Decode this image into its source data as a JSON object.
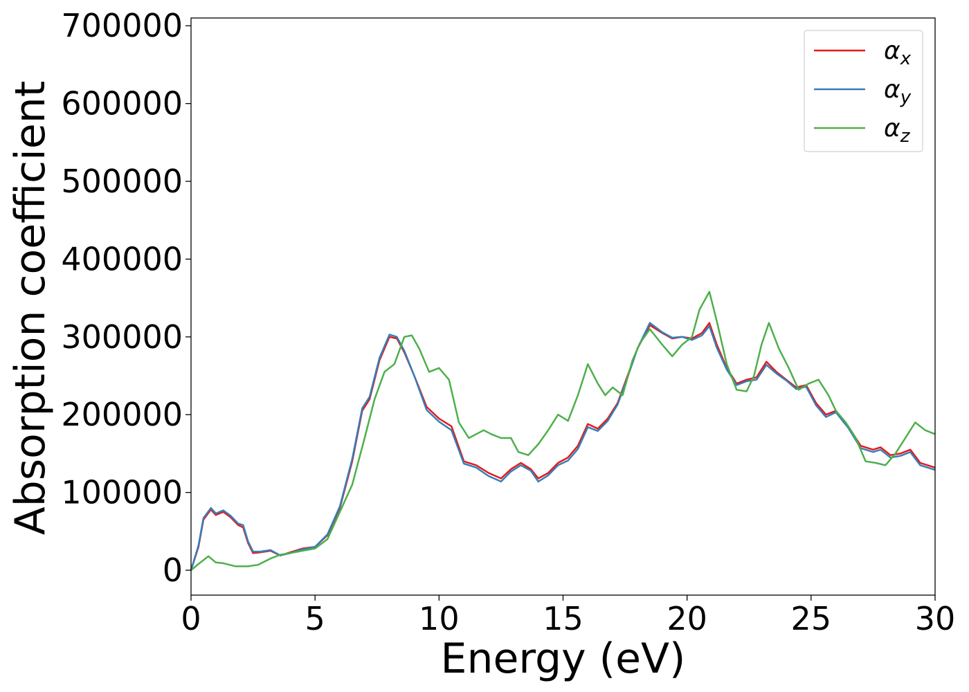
{
  "chart_data": {
    "type": "line",
    "title": "",
    "xlabel": "Energy (eV)",
    "ylabel": "Absorption coefficient",
    "xlim": [
      0,
      30
    ],
    "ylim": [
      -32000,
      710000
    ],
    "xticks": [
      0,
      5,
      10,
      15,
      20,
      25,
      30
    ],
    "xtick_labels": [
      "0",
      "5",
      "10",
      "15",
      "20",
      "25",
      "30"
    ],
    "yticks": [
      0,
      100000,
      200000,
      300000,
      400000,
      500000,
      600000,
      700000
    ],
    "ytick_labels": [
      "0",
      "100000",
      "200000",
      "300000",
      "400000",
      "500000",
      "600000",
      "700000"
    ],
    "grid": false,
    "legend_position": "top-right",
    "series": [
      {
        "name": "αx",
        "symbol": "α",
        "subscript": "x",
        "color": "#e41a1c",
        "x": [
          0,
          0.3,
          0.5,
          0.8,
          1.0,
          1.3,
          1.6,
          1.9,
          2.1,
          2.3,
          2.5,
          2.8,
          3.2,
          3.6,
          4.0,
          4.5,
          5.0,
          5.5,
          6.0,
          6.5,
          6.9,
          7.2,
          7.6,
          8.0,
          8.3,
          8.6,
          9.0,
          9.5,
          10.0,
          10.5,
          11.0,
          11.5,
          12.0,
          12.5,
          12.9,
          13.3,
          13.7,
          14.0,
          14.4,
          14.8,
          15.2,
          15.6,
          16.0,
          16.4,
          16.8,
          17.2,
          17.6,
          18.0,
          18.5,
          19.0,
          19.4,
          19.8,
          20.2,
          20.6,
          20.9,
          21.2,
          21.6,
          22.0,
          22.4,
          22.8,
          23.2,
          23.6,
          24.0,
          24.4,
          24.8,
          25.2,
          25.6,
          26.0,
          26.5,
          27.0,
          27.5,
          27.8,
          28.2,
          28.6,
          29.0,
          29.4,
          30.0
        ],
        "y": [
          0,
          30000,
          65000,
          78000,
          71000,
          75000,
          68000,
          58000,
          55000,
          35000,
          22000,
          23000,
          25000,
          19000,
          23000,
          28000,
          30000,
          45000,
          80000,
          140000,
          205000,
          220000,
          270000,
          300000,
          298000,
          280000,
          250000,
          210000,
          195000,
          185000,
          140000,
          135000,
          125000,
          118000,
          130000,
          138000,
          130000,
          118000,
          125000,
          138000,
          145000,
          160000,
          188000,
          182000,
          195000,
          215000,
          250000,
          285000,
          315000,
          305000,
          298000,
          300000,
          298000,
          305000,
          318000,
          290000,
          260000,
          240000,
          245000,
          248000,
          268000,
          255000,
          245000,
          235000,
          238000,
          215000,
          200000,
          205000,
          185000,
          160000,
          155000,
          158000,
          148000,
          150000,
          155000,
          138000,
          132000
        ]
      },
      {
        "name": "αy",
        "symbol": "α",
        "subscript": "y",
        "color": "#377eb8",
        "x": [
          0,
          0.3,
          0.5,
          0.8,
          1.0,
          1.3,
          1.6,
          1.9,
          2.1,
          2.3,
          2.5,
          2.8,
          3.2,
          3.6,
          4.0,
          4.5,
          5.0,
          5.5,
          6.0,
          6.5,
          6.9,
          7.2,
          7.6,
          8.0,
          8.3,
          8.6,
          9.0,
          9.5,
          10.0,
          10.5,
          11.0,
          11.5,
          12.0,
          12.5,
          12.9,
          13.3,
          13.7,
          14.0,
          14.4,
          14.8,
          15.2,
          15.6,
          16.0,
          16.4,
          16.8,
          17.2,
          17.6,
          18.0,
          18.5,
          19.0,
          19.4,
          19.8,
          20.2,
          20.6,
          20.9,
          21.2,
          21.6,
          22.0,
          22.4,
          22.8,
          23.2,
          23.6,
          24.0,
          24.4,
          24.8,
          25.2,
          25.6,
          26.0,
          26.5,
          27.0,
          27.5,
          27.8,
          28.2,
          28.6,
          29.0,
          29.4,
          30.0
        ],
        "y": [
          0,
          32000,
          67000,
          80000,
          73000,
          77000,
          70000,
          60000,
          58000,
          37000,
          24000,
          24000,
          26000,
          19000,
          22000,
          27000,
          30000,
          46000,
          82000,
          143000,
          208000,
          223000,
          273000,
          303000,
          300000,
          282000,
          250000,
          206000,
          191000,
          180000,
          137000,
          132000,
          121000,
          114000,
          127000,
          135000,
          128000,
          114000,
          122000,
          135000,
          141000,
          156000,
          184000,
          179000,
          192000,
          213000,
          248000,
          285000,
          318000,
          306000,
          299000,
          300000,
          296000,
          302000,
          314000,
          286000,
          258000,
          238000,
          243000,
          245000,
          264000,
          253000,
          244000,
          233000,
          236000,
          212000,
          197000,
          203000,
          183000,
          157000,
          152000,
          155000,
          145000,
          147000,
          152000,
          135000,
          129000
        ]
      },
      {
        "name": "αz",
        "symbol": "α",
        "subscript": "z",
        "color": "#4daf4a",
        "x": [
          0,
          0.3,
          0.7,
          1.0,
          1.3,
          1.8,
          2.3,
          2.7,
          3.2,
          3.6,
          4.0,
          4.5,
          5.0,
          5.5,
          6.0,
          6.5,
          7.0,
          7.4,
          7.8,
          8.2,
          8.6,
          8.9,
          9.2,
          9.6,
          10.0,
          10.4,
          10.8,
          11.2,
          11.5,
          11.8,
          12.1,
          12.5,
          12.9,
          13.2,
          13.6,
          14.0,
          14.4,
          14.8,
          15.2,
          15.6,
          16.0,
          16.4,
          16.7,
          17.0,
          17.4,
          17.8,
          18.1,
          18.5,
          19.0,
          19.4,
          19.8,
          20.2,
          20.5,
          20.9,
          21.2,
          21.6,
          22.0,
          22.4,
          22.7,
          23.0,
          23.3,
          23.7,
          24.1,
          24.5,
          24.9,
          25.3,
          25.7,
          26.0,
          26.4,
          26.8,
          27.2,
          27.6,
          28.0,
          28.4,
          28.8,
          29.2,
          29.6,
          30.0
        ],
        "y": [
          0,
          8000,
          18000,
          10000,
          9000,
          5000,
          5000,
          7000,
          15000,
          20000,
          22000,
          25000,
          28000,
          40000,
          75000,
          110000,
          170000,
          220000,
          255000,
          265000,
          300000,
          302000,
          285000,
          255000,
          260000,
          245000,
          190000,
          170000,
          175000,
          180000,
          175000,
          170000,
          170000,
          152000,
          148000,
          162000,
          180000,
          200000,
          192000,
          225000,
          265000,
          240000,
          225000,
          235000,
          225000,
          270000,
          292000,
          310000,
          290000,
          275000,
          290000,
          300000,
          335000,
          358000,
          320000,
          265000,
          232000,
          230000,
          250000,
          290000,
          318000,
          285000,
          260000,
          232000,
          240000,
          245000,
          225000,
          205000,
          190000,
          170000,
          140000,
          138000,
          135000,
          150000,
          170000,
          190000,
          180000,
          175000
        ]
      }
    ]
  }
}
